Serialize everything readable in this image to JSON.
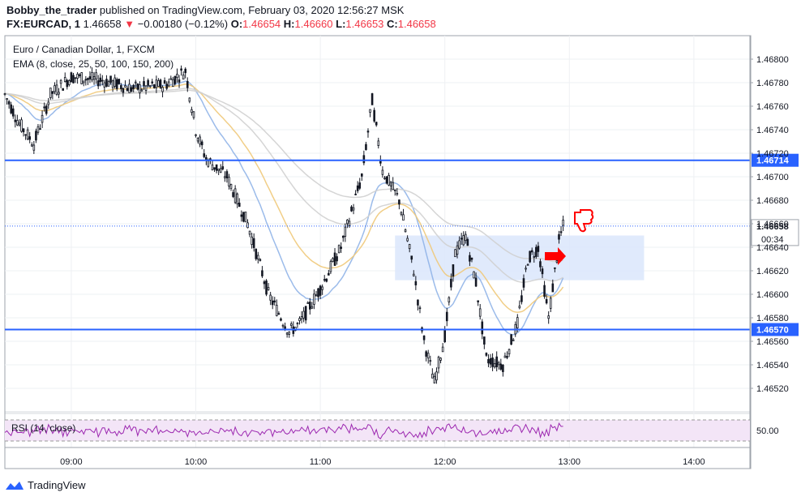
{
  "header": {
    "author": "Bobby_the_trader",
    "published": "published on TradingView.com, February 03, 2020 12:56:27 MSK",
    "symbol": "FX:EURCAD, 1",
    "last": "1.46658",
    "arrow": "▼",
    "change": "−0.00180 (−0.12%)",
    "o_label": "O:",
    "o_value": "1.46654",
    "h_label": "H:",
    "h_value": "1.46660",
    "l_label": "L:",
    "l_value": "1.46653",
    "c_label": "C:",
    "c_value": "1.46658"
  },
  "legend": {
    "instrument": "Euro / Canadian Dollar, 1, FXCM",
    "ema": "EMA (8, close, 25, 50, 100, 150, 200)"
  },
  "rsi_label": "RSI (14, close)",
  "footer": {
    "brand": "TradingView"
  },
  "chart_data": {
    "type": "candlestick",
    "y_range": [
      1.465,
      1.4682
    ],
    "y_ticks": [
      "1.46800",
      "1.46780",
      "1.46760",
      "1.46740",
      "1.46720",
      "1.46700",
      "1.46680",
      "1.46660",
      "1.46640",
      "1.46620",
      "1.46600",
      "1.46580",
      "1.46560",
      "1.46540",
      "1.46520"
    ],
    "x_ticks": [
      "09:00",
      "10:00",
      "11:00",
      "12:00",
      "13:00",
      "14:00"
    ],
    "x_range": [
      "08:28",
      "14:27"
    ],
    "horizontal_levels": [
      {
        "label": "1.46714",
        "value": 1.46714
      },
      {
        "label": "1.46570",
        "value": 1.4657
      }
    ],
    "last_price": {
      "label": "1.46658",
      "value": 1.46658,
      "countdown": "00:34"
    },
    "rsi_ticks": [
      "50.00"
    ],
    "price_path": [
      [
        "08:28",
        1.4677
      ],
      [
        "08:35",
        1.46745
      ],
      [
        "08:42",
        1.46728
      ],
      [
        "08:50",
        1.4677
      ],
      [
        "09:00",
        1.46785
      ],
      [
        "09:15",
        1.46782
      ],
      [
        "09:30",
        1.46775
      ],
      [
        "09:45",
        1.46778
      ],
      [
        "09:55",
        1.4679
      ],
      [
        "10:00",
        1.4674
      ],
      [
        "10:05",
        1.46715
      ],
      [
        "10:15",
        1.467
      ],
      [
        "10:25",
        1.4666
      ],
      [
        "10:35",
        1.466
      ],
      [
        "10:45",
        1.46568
      ],
      [
        "10:50",
        1.46575
      ],
      [
        "11:00",
        1.46605
      ],
      [
        "11:10",
        1.4664
      ],
      [
        "11:20",
        1.467
      ],
      [
        "11:25",
        1.46765
      ],
      [
        "11:30",
        1.46705
      ],
      [
        "11:38",
        1.4668
      ],
      [
        "11:45",
        1.4662
      ],
      [
        "11:50",
        1.4656
      ],
      [
        "11:55",
        1.46525
      ],
      [
        "12:00",
        1.46565
      ],
      [
        "12:05",
        1.46635
      ],
      [
        "12:10",
        1.4665
      ],
      [
        "12:15",
        1.4661
      ],
      [
        "12:20",
        1.46545
      ],
      [
        "12:28",
        1.4654
      ],
      [
        "12:35",
        1.46575
      ],
      [
        "12:40",
        1.4663
      ],
      [
        "12:45",
        1.4664
      ],
      [
        "12:50",
        1.4658
      ],
      [
        "12:55",
        1.46645
      ],
      [
        "12:57",
        1.46658
      ]
    ]
  },
  "colors": {
    "level_line": "#2962ff",
    "level_label_bg": "#2962ff",
    "ema_fast": "#90b4e8",
    "ema_mid": "#f0c97a",
    "ema_slow": "#d0d0d0",
    "zone": "#dbe6fb",
    "rsi_band": "#f3e5f7",
    "rsi_line": "#9c27b0",
    "marker": "#ff0000"
  }
}
